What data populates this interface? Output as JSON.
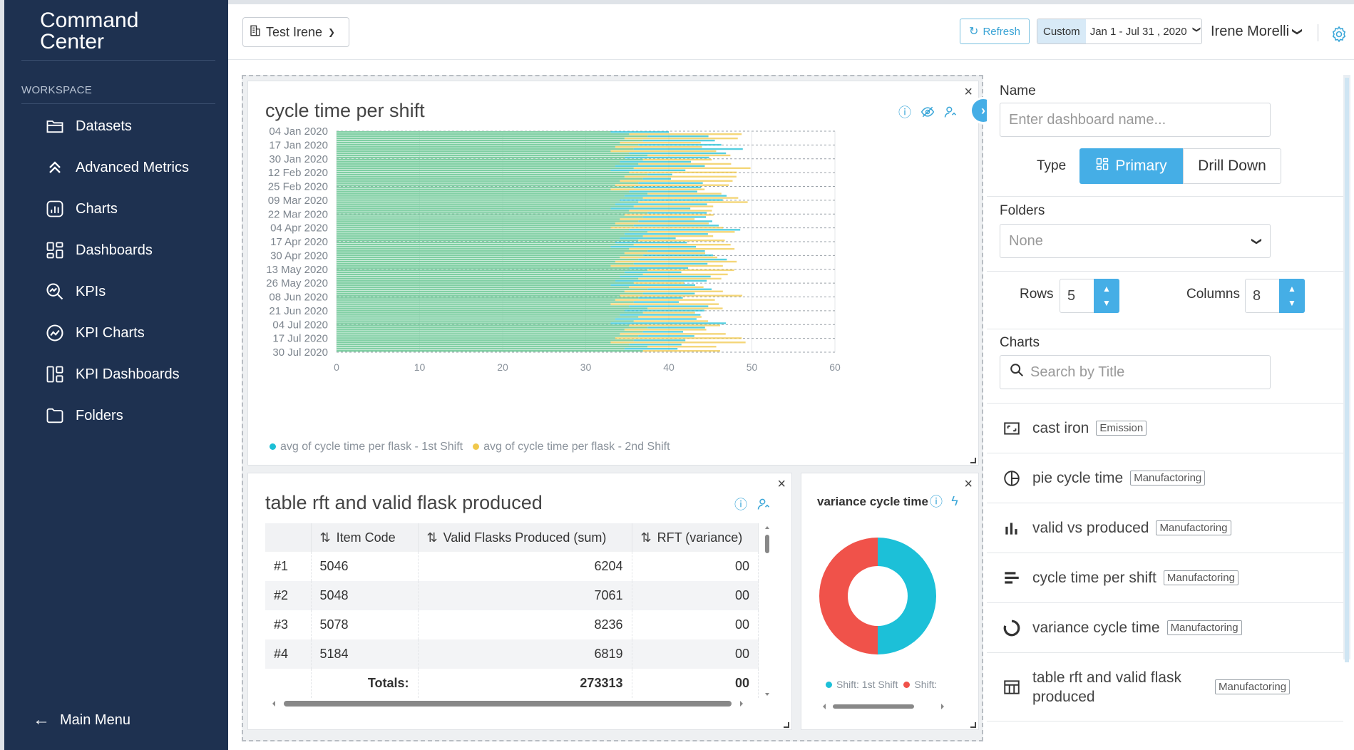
{
  "app": {
    "title": "Command Center"
  },
  "sidebar": {
    "section_label": "WORKSPACE",
    "items": [
      {
        "label": "Datasets",
        "icon": "folder-open-icon"
      },
      {
        "label": "Advanced Metrics",
        "icon": "double-chevron-up-icon"
      },
      {
        "label": "Charts",
        "icon": "chart-icon"
      },
      {
        "label": "Dashboards",
        "icon": "dashboard-grid-icon"
      },
      {
        "label": "KPIs",
        "icon": "kpi-search-icon"
      },
      {
        "label": "KPI Charts",
        "icon": "kpi-chart-icon"
      },
      {
        "label": "KPI Dashboards",
        "icon": "kpi-dashboard-icon"
      },
      {
        "label": "Folders",
        "icon": "folder-icon"
      }
    ],
    "main_menu": "Main Menu"
  },
  "topbar": {
    "workspace": "Test Irene",
    "refresh": "Refresh",
    "date_mode": "Custom",
    "date_range": "Jan 1 - Jul 31 , 2020",
    "user": "Irene Morelli"
  },
  "colors": {
    "sidebar_bg": "#1e3150",
    "accent": "#45aee6",
    "series_1st": "#1cbfd6",
    "series_2nd": "#f0c84b",
    "bar_fill": "#7fcfa3",
    "donut_red": "#f0524a",
    "donut_cyan": "#1cc0d8"
  },
  "chart_card": {
    "title": "cycle time per shift",
    "legend": [
      "avg of cycle time per flask - 1st Shift",
      "avg of cycle time per flask - 2nd Shift"
    ]
  },
  "chart_data": [
    {
      "type": "bar",
      "orientation": "horizontal",
      "title": "cycle time per shift",
      "xlim": [
        0,
        60
      ],
      "x_ticks": [
        0,
        10,
        20,
        30,
        40,
        50,
        60
      ],
      "y_tick_labels": [
        "04 Jan 2020",
        "17 Jan 2020",
        "30 Jan 2020",
        "12 Feb 2020",
        "25 Feb 2020",
        "09 Mar 2020",
        "22 Mar 2020",
        "04 Apr 2020",
        "17 Apr 2020",
        "30 Apr 2020",
        "13 May 2020",
        "26 May 2020",
        "08 Jun 2020",
        "21 Jun 2020",
        "04 Jul 2020",
        "17 Jul 2020",
        "30 Jul 2020"
      ],
      "legend_placement": "bottom-left",
      "series": [
        {
          "name": "avg of cycle time per flask - 1st Shift",
          "approx_range": [
            37,
            49
          ]
        },
        {
          "name": "avg of cycle time per flask - 2nd Shift",
          "approx_range": [
            37,
            50
          ]
        }
      ],
      "representative_values": {
        "1st Shift": [
          42,
          48,
          45,
          41,
          44,
          46,
          43,
          49,
          40,
          47,
          43,
          45,
          42,
          44,
          46,
          41,
          43
        ],
        "2nd Shift": [
          49,
          44,
          46,
          50,
          45,
          48,
          44,
          46,
          47,
          45,
          49,
          43,
          47,
          45,
          44,
          48,
          46
        ]
      }
    },
    {
      "type": "pie",
      "title": "variance cycle time",
      "donut": true,
      "slices": [
        {
          "name": "Shift: 1st Shift",
          "value": 50
        },
        {
          "name": "Shift:",
          "value": 50
        }
      ]
    }
  ],
  "table_card": {
    "title": "table rft and valid flask produced",
    "columns": [
      "",
      "Item Code",
      "Valid Flasks Produced (sum)",
      "RFT (variance)"
    ],
    "rows": [
      {
        "idx": "#1",
        "code": "5046",
        "valid": "6204",
        "rft": "00"
      },
      {
        "idx": "#2",
        "code": "5048",
        "valid": "7061",
        "rft": "00"
      },
      {
        "idx": "#3",
        "code": "5078",
        "valid": "8236",
        "rft": "00"
      },
      {
        "idx": "#4",
        "code": "5184",
        "valid": "6819",
        "rft": "00"
      }
    ],
    "totals": {
      "label": "Totals:",
      "valid": "273313",
      "rft": "00"
    }
  },
  "donut_card": {
    "title": "variance cycle time",
    "legend": [
      "Shift: 1st Shift",
      "Shift:"
    ]
  },
  "panel": {
    "name_label": "Name",
    "name_placeholder": "Enter dashboard name...",
    "type_label": "Type",
    "type_primary": "Primary",
    "type_drill": "Drill Down",
    "folders_label": "Folders",
    "folders_value": "None",
    "rows_label": "Rows",
    "rows_value": "5",
    "columns_label": "Columns",
    "columns_value": "8",
    "charts_label": "Charts",
    "search_placeholder": "Search by Title",
    "charts": [
      {
        "name": "cast iron",
        "tag": "Emission",
        "icon": "expand-icon"
      },
      {
        "name": "pie cycle time",
        "tag": "Manufactoring",
        "icon": "pie-icon"
      },
      {
        "name": "valid vs produced",
        "tag": "Manufactoring",
        "icon": "bar-chart-icon"
      },
      {
        "name": "cycle time per shift",
        "tag": "Manufactoring",
        "icon": "horizontal-bar-icon"
      },
      {
        "name": "variance cycle time",
        "tag": "Manufactoring",
        "icon": "donut-icon"
      },
      {
        "name": "table rft and valid flask produced",
        "tag": "Manufactoring",
        "icon": "table-icon"
      }
    ]
  }
}
